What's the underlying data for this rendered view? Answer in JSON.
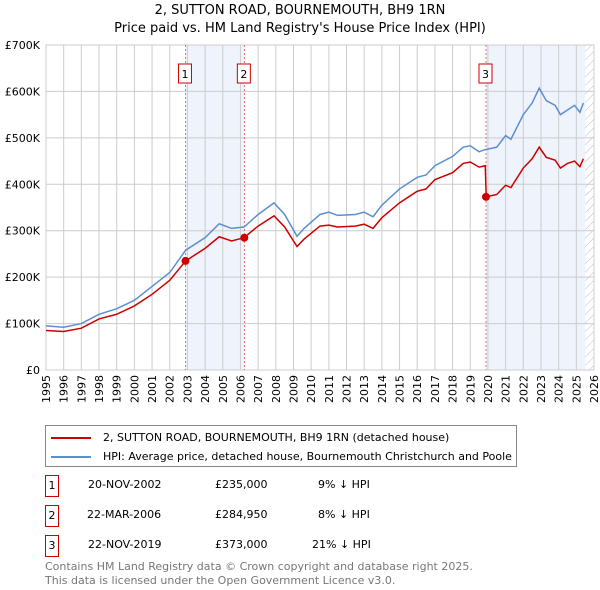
{
  "chart_data": {
    "type": "line",
    "title": "2, SUTTON ROAD, BOURNEMOUTH, BH9 1RN",
    "subtitle": "Price paid vs. HM Land Registry's House Price Index (HPI)",
    "xlim": [
      1995,
      2026
    ],
    "ylim": [
      0,
      700000
    ],
    "x_ticks": [
      "1995",
      "1996",
      "1997",
      "1998",
      "1999",
      "2000",
      "2001",
      "2002",
      "2003",
      "2004",
      "2005",
      "2006",
      "2007",
      "2008",
      "2009",
      "2010",
      "2011",
      "2012",
      "2013",
      "2014",
      "2015",
      "2016",
      "2017",
      "2018",
      "2019",
      "2020",
      "2021",
      "2022",
      "2023",
      "2024",
      "2025",
      "2026"
    ],
    "y_ticks": [
      {
        "v": 0,
        "label": "£0"
      },
      {
        "v": 100000,
        "label": "£100K"
      },
      {
        "v": 200000,
        "label": "£200K"
      },
      {
        "v": 300000,
        "label": "£300K"
      },
      {
        "v": 400000,
        "label": "£400K"
      },
      {
        "v": 500000,
        "label": "£500K"
      },
      {
        "v": 600000,
        "label": "£600K"
      },
      {
        "v": 700000,
        "label": "£700K"
      }
    ],
    "grid": true,
    "x": [
      1995,
      1996,
      1997,
      1998,
      1999,
      2000,
      2001,
      2002,
      2002.9,
      2004,
      2004.8,
      2005.5,
      2006.2,
      2007,
      2007.9,
      2008.5,
      2009.2,
      2009.6,
      2010.5,
      2011,
      2011.5,
      2012.5,
      2013,
      2013.5,
      2014,
      2015,
      2016,
      2016.5,
      2017,
      2018,
      2018.6,
      2019,
      2019.5,
      2019.85,
      2019.9,
      2020.5,
      2021,
      2021.3,
      2022,
      2022.5,
      2022.9,
      2023.3,
      2023.8,
      2024.1,
      2024.5,
      2024.9,
      2025.2,
      2025.4
    ],
    "series": [
      {
        "name": "2, SUTTON ROAD, BOURNEMOUTH, BH9 1RN (detached house)",
        "color": "#cc0000",
        "values": [
          85,
          83,
          90,
          110,
          120,
          138,
          163,
          193,
          235,
          262,
          287,
          278,
          285,
          310,
          332,
          308,
          266,
          282,
          310,
          312,
          308,
          310,
          314,
          305,
          328,
          360,
          385,
          390,
          410,
          425,
          445,
          448,
          437,
          440,
          373,
          378,
          398,
          393,
          435,
          455,
          480,
          458,
          452,
          435,
          445,
          450,
          438,
          455
        ]
      },
      {
        "name": "HPI: Average price, detached house, Bournemouth Christchurch and Poole",
        "color": "#5b8fd0",
        "values": [
          95,
          92,
          100,
          120,
          132,
          150,
          180,
          210,
          258,
          285,
          315,
          305,
          308,
          335,
          360,
          335,
          288,
          305,
          335,
          340,
          333,
          335,
          340,
          330,
          355,
          390,
          415,
          420,
          440,
          460,
          480,
          483,
          470,
          475,
          475,
          480,
          505,
          497,
          550,
          575,
          607,
          580,
          570,
          550,
          560,
          570,
          555,
          575
        ]
      }
    ],
    "values_unit": "thousands GBP",
    "shaded_ranges": [
      [
        2002.89,
        2006.22
      ],
      [
        2019.89,
        2025.5
      ]
    ],
    "hatched_from": 2025.5,
    "sales": [
      {
        "label": "1",
        "x": 2002.89,
        "date": "20-NOV-2002",
        "price": "£235,000",
        "value": 235,
        "hpi": "9% ↓ HPI"
      },
      {
        "label": "2",
        "x": 2006.22,
        "date": "22-MAR-2006",
        "price": "£284,950",
        "value": 284.95,
        "hpi": "8% ↓ HPI"
      },
      {
        "label": "3",
        "x": 2019.89,
        "date": "22-NOV-2019",
        "price": "£373,000",
        "value": 373,
        "hpi": "21% ↓ HPI"
      }
    ],
    "legend_position": "below"
  },
  "footer": {
    "line1": "Contains HM Land Registry data © Crown copyright and database right 2025.",
    "line2": "This data is licensed under the Open Government Licence v3.0."
  }
}
